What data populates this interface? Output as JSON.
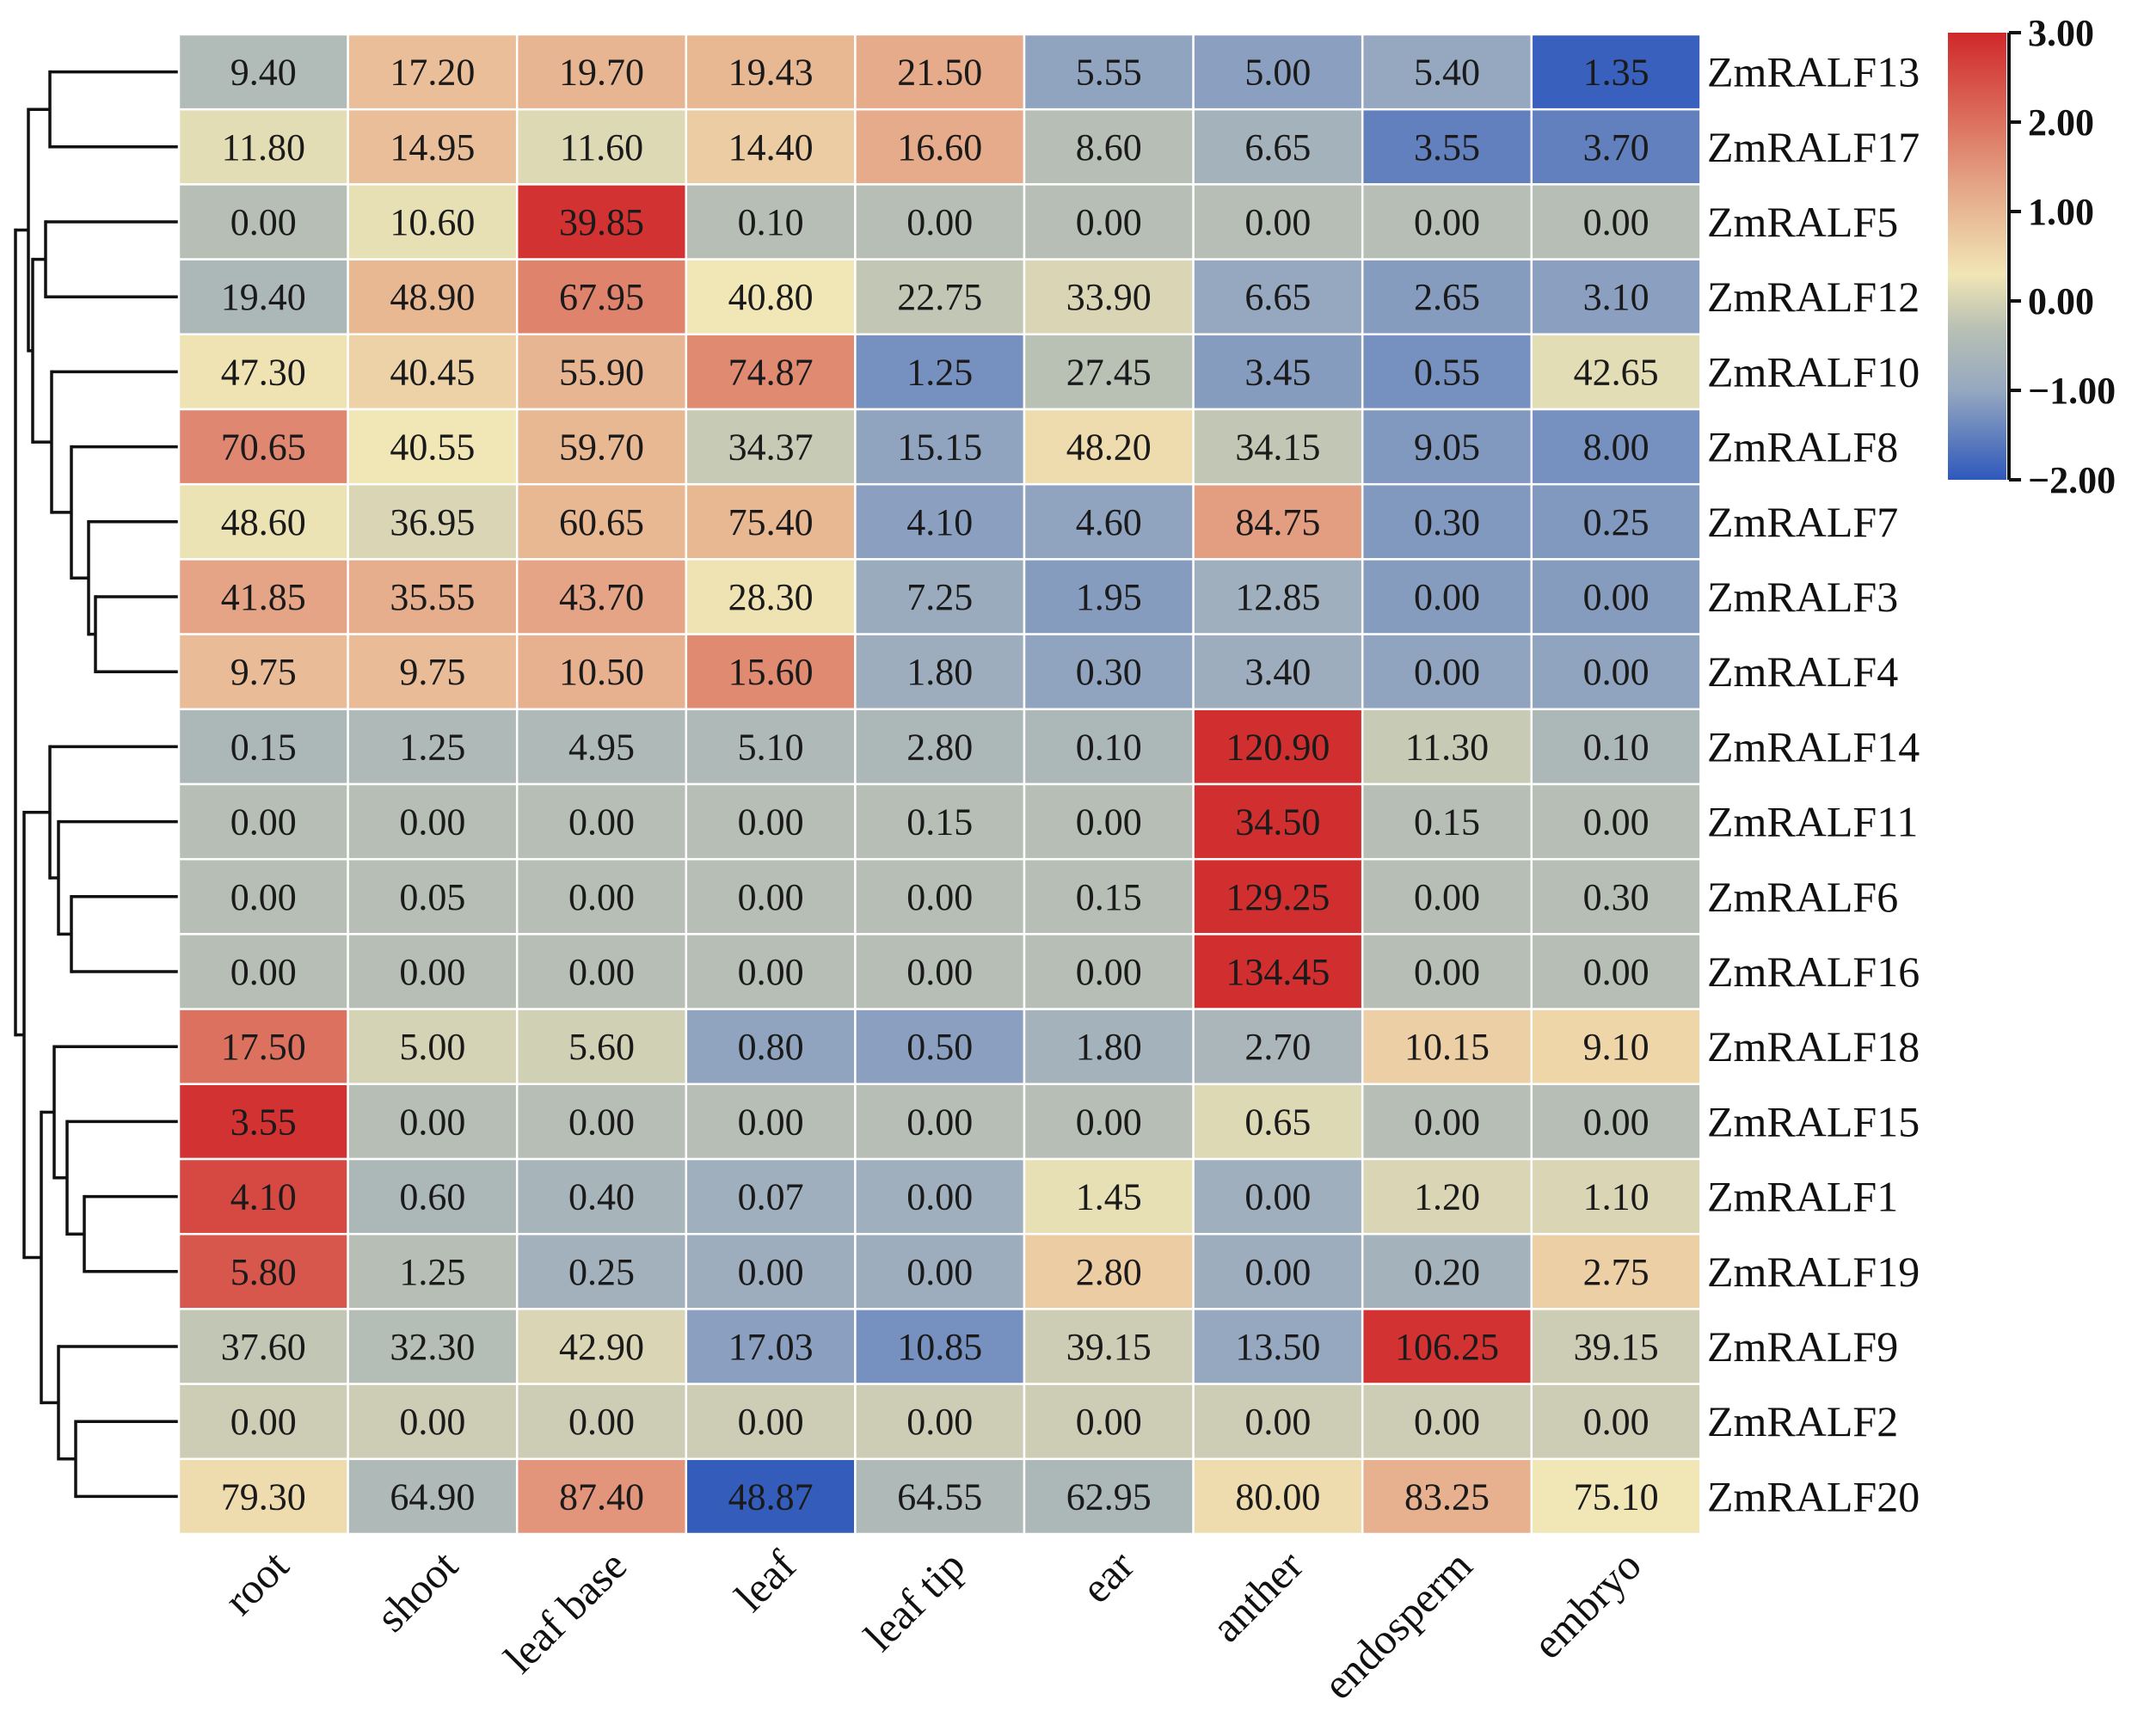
{
  "chart_data": {
    "type": "heatmap",
    "title": "",
    "columns": [
      "root",
      "shoot",
      "leaf base",
      "leaf",
      "leaf tip",
      "ear",
      "anther",
      "endosperm",
      "embryo"
    ],
    "rows": [
      "ZmRALF13",
      "ZmRALF17",
      "ZmRALF5",
      "ZmRALF12",
      "ZmRALF10",
      "ZmRALF8",
      "ZmRALF7",
      "ZmRALF3",
      "ZmRALF4",
      "ZmRALF14",
      "ZmRALF11",
      "ZmRALF6",
      "ZmRALF16",
      "ZmRALF18",
      "ZmRALF15",
      "ZmRALF1",
      "ZmRALF19",
      "ZmRALF9",
      "ZmRALF2",
      "ZmRALF20"
    ],
    "labels": [
      [
        "9.40",
        "17.20",
        "19.70",
        "19.43",
        "21.50",
        "5.55",
        "5.00",
        "5.40",
        "1.35"
      ],
      [
        "11.80",
        "14.95",
        "11.60",
        "14.40",
        "16.60",
        "8.60",
        "6.65",
        "3.55",
        "3.70"
      ],
      [
        "0.00",
        "10.60",
        "39.85",
        "0.10",
        "0.00",
        "0.00",
        "0.00",
        "0.00",
        "0.00"
      ],
      [
        "19.40",
        "48.90",
        "67.95",
        "40.80",
        "22.75",
        "33.90",
        "6.65",
        "2.65",
        "3.10"
      ],
      [
        "47.30",
        "40.45",
        "55.90",
        "74.87",
        "1.25",
        "27.45",
        "3.45",
        "0.55",
        "42.65"
      ],
      [
        "70.65",
        "40.55",
        "59.70",
        "34.37",
        "15.15",
        "48.20",
        "34.15",
        "9.05",
        "8.00"
      ],
      [
        "48.60",
        "36.95",
        "60.65",
        "75.40",
        "4.10",
        "4.60",
        "84.75",
        "0.30",
        "0.25"
      ],
      [
        "41.85",
        "35.55",
        "43.70",
        "28.30",
        "7.25",
        "1.95",
        "12.85",
        "0.00",
        "0.00"
      ],
      [
        "9.75",
        "9.75",
        "10.50",
        "15.60",
        "1.80",
        "0.30",
        "3.40",
        "0.00",
        "0.00"
      ],
      [
        "0.15",
        "1.25",
        "4.95",
        "5.10",
        "2.80",
        "0.10",
        "120.90",
        "11.30",
        "0.10"
      ],
      [
        "0.00",
        "0.00",
        "0.00",
        "0.00",
        "0.15",
        "0.00",
        "34.50",
        "0.15",
        "0.00"
      ],
      [
        "0.00",
        "0.05",
        "0.00",
        "0.00",
        "0.00",
        "0.15",
        "129.25",
        "0.00",
        "0.30"
      ],
      [
        "0.00",
        "0.00",
        "0.00",
        "0.00",
        "0.00",
        "0.00",
        "134.45",
        "0.00",
        "0.00"
      ],
      [
        "17.50",
        "5.00",
        "5.60",
        "0.80",
        "0.50",
        "1.80",
        "2.70",
        "10.15",
        "9.10"
      ],
      [
        "3.55",
        "0.00",
        "0.00",
        "0.00",
        "0.00",
        "0.00",
        "0.65",
        "0.00",
        "0.00"
      ],
      [
        "4.10",
        "0.60",
        "0.40",
        "0.07",
        "0.00",
        "1.45",
        "0.00",
        "1.20",
        "1.10"
      ],
      [
        "5.80",
        "1.25",
        "0.25",
        "0.00",
        "0.00",
        "2.80",
        "0.00",
        "0.20",
        "2.75"
      ],
      [
        "37.60",
        "32.30",
        "42.90",
        "17.03",
        "10.85",
        "39.15",
        "13.50",
        "106.25",
        "39.15"
      ],
      [
        "0.00",
        "0.00",
        "0.00",
        "0.00",
        "0.00",
        "0.00",
        "0.00",
        "0.00",
        "0.00"
      ],
      [
        "79.30",
        "64.90",
        "87.40",
        "48.87",
        "64.55",
        "62.95",
        "80.00",
        "83.25",
        "75.10"
      ]
    ],
    "color_values": [
      [
        -0.45,
        0.9,
        1.05,
        1.0,
        1.2,
        -1.05,
        -1.1,
        -1.0,
        -1.9
      ],
      [
        0.15,
        0.9,
        0.1,
        0.7,
        1.2,
        -0.35,
        -0.7,
        -1.5,
        -1.5
      ],
      [
        -0.35,
        0.2,
        2.85,
        -0.35,
        -0.35,
        -0.35,
        -0.35,
        -0.35,
        -0.35
      ],
      [
        -0.55,
        1.0,
        1.75,
        0.3,
        -0.2,
        0.05,
        -1.0,
        -1.15,
        -1.1
      ],
      [
        0.35,
        0.6,
        1.05,
        1.65,
        -1.3,
        -0.3,
        -1.15,
        -1.3,
        0.15
      ],
      [
        1.7,
        0.3,
        1.0,
        -0.15,
        -1.05,
        0.45,
        -0.2,
        -1.2,
        -1.3
      ],
      [
        0.25,
        0.05,
        1.0,
        1.0,
        -1.1,
        -1.05,
        1.4,
        -1.2,
        -1.2
      ],
      [
        1.3,
        1.15,
        1.3,
        0.35,
        -0.9,
        -1.15,
        -0.8,
        -1.15,
        -1.15
      ],
      [
        0.95,
        0.95,
        1.1,
        1.65,
        -0.85,
        -1.05,
        -0.85,
        -1.05,
        -1.05
      ],
      [
        -0.55,
        -0.5,
        -0.5,
        -0.5,
        -0.55,
        -0.55,
        2.9,
        -0.15,
        -0.55
      ],
      [
        -0.35,
        -0.35,
        -0.35,
        -0.35,
        -0.35,
        -0.35,
        2.9,
        -0.35,
        -0.35
      ],
      [
        -0.35,
        -0.35,
        -0.35,
        -0.35,
        -0.35,
        -0.35,
        2.9,
        -0.35,
        -0.35
      ],
      [
        -0.35,
        -0.35,
        -0.35,
        -0.35,
        -0.35,
        -0.35,
        2.9,
        -0.35,
        -0.35
      ],
      [
        2.0,
        0.0,
        -0.05,
        -1.05,
        -1.1,
        -0.7,
        -0.6,
        0.65,
        0.55
      ],
      [
        2.85,
        -0.35,
        -0.35,
        -0.35,
        -0.35,
        -0.35,
        0.1,
        -0.35,
        -0.35
      ],
      [
        2.55,
        -0.55,
        -0.65,
        -0.8,
        -0.8,
        0.2,
        -0.8,
        0.05,
        0.05
      ],
      [
        2.35,
        -0.35,
        -0.75,
        -0.85,
        -0.85,
        0.7,
        -0.85,
        -0.7,
        0.65
      ],
      [
        -0.2,
        -0.4,
        0.05,
        -1.1,
        -1.3,
        -0.1,
        -1.0,
        2.85,
        -0.1
      ],
      [
        -0.1,
        -0.1,
        -0.1,
        -0.1,
        -0.1,
        -0.1,
        -0.1,
        -0.1,
        -0.1
      ],
      [
        0.45,
        -0.5,
        1.5,
        -1.95,
        -0.5,
        -0.55,
        0.45,
        1.1,
        0.3
      ]
    ],
    "colorbar": {
      "range": [
        -2.0,
        3.0
      ],
      "ticks": [
        "3.00",
        "2.00",
        "1.00",
        "0.00",
        "−1.00",
        "−2.00"
      ],
      "tick_values": [
        3.0,
        2.0,
        1.0,
        0.0,
        -1.0,
        -2.0
      ]
    },
    "dendrogram": "hierarchical clustering of rows (left)",
    "palette": {
      "low": "#2f58bb",
      "mid_low": "#95a8c0",
      "mid": "#b9c0b4",
      "mid_high": "#f1e6b5",
      "high_a": "#e4a485",
      "high": "#d0282a",
      "grid": "#ffffff",
      "line": "#111111"
    }
  }
}
